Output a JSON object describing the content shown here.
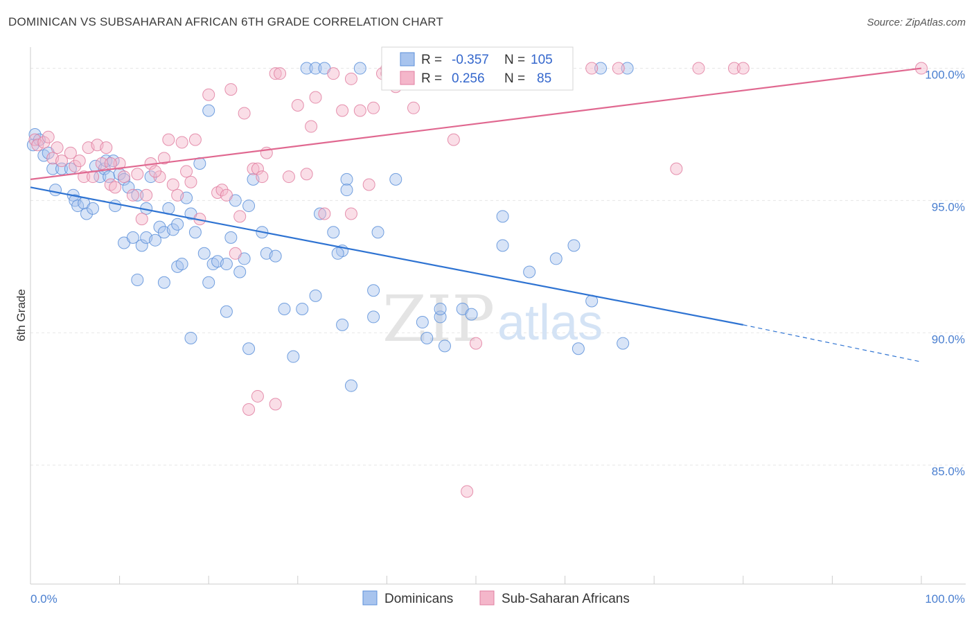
{
  "title": "DOMINICAN VS SUBSAHARAN AFRICAN 6TH GRADE CORRELATION CHART",
  "source": "Source: ZipAtlas.com",
  "watermark": {
    "zip": "ZIP",
    "atlas": "atlas"
  },
  "colors": {
    "blue": "#5b8fd9",
    "blue_fill": "#a8c4ee",
    "blue_line": "#2e73d2",
    "pink": "#e07ea0",
    "pink_fill": "#f4b6ca",
    "pink_line": "#e06890",
    "tick_text": "#4a7fd0",
    "grid": "#e6e6e6"
  },
  "stats": {
    "blue": {
      "r_label": "R =",
      "r": "-0.357",
      "n_label": "N =",
      "n": "105"
    },
    "pink": {
      "r_label": "R =",
      "r": "0.256",
      "n_label": "N =",
      "n": "85"
    }
  },
  "chart_data": {
    "type": "scatter",
    "title": "DOMINICAN VS SUBSAHARAN AFRICAN 6TH GRADE CORRELATION CHART",
    "xlabel": "",
    "ylabel": "6th Grade",
    "xlim": [
      0,
      100
    ],
    "ylim": [
      80.5,
      100.8
    ],
    "x_tick_labels": [
      "0.0%",
      "100.0%"
    ],
    "y_ticks": [
      85,
      90,
      95,
      100
    ],
    "y_tick_labels": [
      "85.0%",
      "90.0%",
      "95.0%",
      "100.0%"
    ],
    "grid": true,
    "legend_position": "bottom-center",
    "series": [
      {
        "name": "Dominicans",
        "color": "#5b8fd9",
        "trend": {
          "x0": 0,
          "y0": 95.5,
          "x1": 80,
          "y1": 90.3,
          "dashed_to_x": 100,
          "dashed_to_y": 88.9
        },
        "points": [
          [
            0.3,
            97.1
          ],
          [
            0.5,
            97.5
          ],
          [
            1.0,
            97.3
          ],
          [
            1.5,
            96.7
          ],
          [
            2.0,
            96.8
          ],
          [
            2.5,
            96.2
          ],
          [
            2.8,
            95.4
          ],
          [
            3.5,
            96.2
          ],
          [
            4.5,
            96.2
          ],
          [
            4.8,
            95.2
          ],
          [
            5.0,
            95.0
          ],
          [
            5.3,
            94.8
          ],
          [
            6.0,
            94.9
          ],
          [
            6.3,
            94.5
          ],
          [
            7.0,
            94.7
          ],
          [
            7.3,
            96.3
          ],
          [
            7.8,
            95.9
          ],
          [
            8.3,
            96.2
          ],
          [
            8.8,
            95.9
          ],
          [
            8.5,
            96.5
          ],
          [
            9.5,
            94.8
          ],
          [
            9.3,
            96.5
          ],
          [
            10.0,
            96.0
          ],
          [
            10.5,
            95.8
          ],
          [
            11.0,
            95.5
          ],
          [
            12.0,
            95.2
          ],
          [
            13.0,
            94.7
          ],
          [
            13.5,
            95.9
          ],
          [
            10.5,
            93.4
          ],
          [
            12.0,
            92.0
          ],
          [
            11.5,
            93.6
          ],
          [
            12.5,
            93.3
          ],
          [
            13.0,
            93.6
          ],
          [
            14.0,
            93.5
          ],
          [
            14.5,
            94.0
          ],
          [
            15.0,
            93.8
          ],
          [
            15.5,
            94.7
          ],
          [
            16.0,
            93.9
          ],
          [
            16.5,
            94.1
          ],
          [
            15.0,
            91.9
          ],
          [
            16.5,
            92.5
          ],
          [
            17.0,
            92.6
          ],
          [
            17.5,
            95.1
          ],
          [
            18.0,
            94.5
          ],
          [
            19.0,
            96.4
          ],
          [
            18.5,
            93.8
          ],
          [
            19.5,
            93.0
          ],
          [
            20.0,
            91.9
          ],
          [
            20.5,
            92.6
          ],
          [
            21.0,
            92.7
          ],
          [
            22.0,
            92.6
          ],
          [
            22.5,
            93.6
          ],
          [
            23.0,
            95.0
          ],
          [
            24.0,
            92.8
          ],
          [
            24.5,
            94.8
          ],
          [
            25.0,
            95.8
          ],
          [
            23.5,
            92.3
          ],
          [
            18.0,
            89.8
          ],
          [
            22.0,
            90.8
          ],
          [
            24.5,
            89.4
          ],
          [
            26.0,
            93.8
          ],
          [
            26.5,
            93.0
          ],
          [
            27.5,
            92.9
          ],
          [
            28.5,
            90.9
          ],
          [
            29.5,
            89.1
          ],
          [
            30.5,
            90.9
          ],
          [
            32.0,
            91.4
          ],
          [
            32.5,
            94.5
          ],
          [
            34.0,
            93.8
          ],
          [
            35.0,
            93.1
          ],
          [
            36.0,
            88.0
          ],
          [
            35.5,
            95.8
          ],
          [
            35.5,
            95.4
          ],
          [
            35.0,
            90.3
          ],
          [
            38.5,
            91.6
          ],
          [
            38.5,
            90.6
          ],
          [
            39.0,
            93.8
          ],
          [
            41.0,
            95.8
          ],
          [
            44.0,
            90.4
          ],
          [
            44.5,
            89.8
          ],
          [
            46.0,
            90.6
          ],
          [
            46.0,
            90.9
          ],
          [
            46.5,
            89.5
          ],
          [
            48.5,
            90.9
          ],
          [
            49.5,
            90.7
          ],
          [
            53.0,
            94.4
          ],
          [
            53.0,
            93.3
          ],
          [
            56.0,
            92.3
          ],
          [
            59.0,
            92.8
          ],
          [
            61.0,
            93.3
          ],
          [
            61.5,
            89.4
          ],
          [
            63.0,
            91.2
          ],
          [
            66.5,
            89.6
          ],
          [
            34.5,
            93.0
          ],
          [
            31.0,
            100.0
          ],
          [
            32.0,
            100.0
          ],
          [
            33.0,
            100.0
          ],
          [
            37.0,
            100.0
          ],
          [
            40.5,
            100.0
          ],
          [
            42.0,
            100.0
          ],
          [
            45.0,
            100.0
          ],
          [
            50.0,
            100.0
          ],
          [
            64.0,
            100.0
          ],
          [
            67.0,
            100.0
          ],
          [
            20.0,
            98.4
          ]
        ]
      },
      {
        "name": "Sub-Saharan Africans",
        "color": "#e07ea0",
        "trend": {
          "x0": 0,
          "y0": 95.8,
          "x1": 100,
          "y1": 100.0
        },
        "points": [
          [
            0.5,
            97.3
          ],
          [
            0.8,
            97.1
          ],
          [
            1.5,
            97.2
          ],
          [
            2.0,
            97.4
          ],
          [
            3.0,
            97.0
          ],
          [
            2.5,
            96.6
          ],
          [
            3.5,
            96.5
          ],
          [
            4.5,
            96.8
          ],
          [
            5.0,
            96.3
          ],
          [
            5.5,
            96.5
          ],
          [
            6.0,
            95.9
          ],
          [
            6.5,
            97.0
          ],
          [
            7.0,
            95.9
          ],
          [
            7.5,
            97.1
          ],
          [
            8.0,
            96.4
          ],
          [
            8.5,
            97.0
          ],
          [
            9.0,
            95.6
          ],
          [
            9.5,
            95.5
          ],
          [
            10.0,
            96.4
          ],
          [
            10.5,
            95.9
          ],
          [
            11.5,
            95.2
          ],
          [
            12.5,
            94.3
          ],
          [
            13.0,
            95.2
          ],
          [
            13.5,
            96.4
          ],
          [
            14.5,
            95.9
          ],
          [
            15.0,
            96.6
          ],
          [
            15.5,
            97.3
          ],
          [
            16.0,
            95.6
          ],
          [
            16.5,
            95.2
          ],
          [
            17.0,
            97.2
          ],
          [
            17.5,
            96.1
          ],
          [
            18.0,
            95.7
          ],
          [
            18.5,
            97.3
          ],
          [
            19.0,
            94.3
          ],
          [
            20.0,
            99.0
          ],
          [
            21.0,
            95.3
          ],
          [
            21.5,
            95.4
          ],
          [
            22.0,
            95.2
          ],
          [
            22.5,
            99.2
          ],
          [
            23.0,
            93.0
          ],
          [
            23.5,
            94.4
          ],
          [
            24.0,
            98.3
          ],
          [
            25.0,
            96.2
          ],
          [
            25.5,
            96.2
          ],
          [
            26.0,
            95.9
          ],
          [
            26.5,
            96.8
          ],
          [
            27.5,
            99.8
          ],
          [
            28.0,
            99.8
          ],
          [
            29.0,
            95.9
          ],
          [
            30.0,
            98.6
          ],
          [
            31.0,
            96.0
          ],
          [
            31.5,
            97.8
          ],
          [
            32.0,
            98.9
          ],
          [
            33.0,
            94.5
          ],
          [
            34.0,
            99.8
          ],
          [
            35.0,
            98.4
          ],
          [
            36.0,
            99.6
          ],
          [
            37.0,
            98.4
          ],
          [
            38.0,
            95.6
          ],
          [
            38.5,
            98.5
          ],
          [
            39.5,
            99.8
          ],
          [
            40.0,
            99.8
          ],
          [
            41.0,
            99.3
          ],
          [
            42.0,
            99.8
          ],
          [
            43.0,
            98.5
          ],
          [
            44.5,
            99.8
          ],
          [
            47.5,
            97.3
          ],
          [
            48.0,
            99.8
          ],
          [
            63.0,
            100.0
          ],
          [
            66.0,
            100.0
          ],
          [
            72.5,
            96.2
          ],
          [
            75.0,
            100.0
          ],
          [
            79.0,
            100.0
          ],
          [
            80.0,
            100.0
          ],
          [
            100.0,
            100.0
          ],
          [
            24.5,
            87.1
          ],
          [
            25.5,
            87.6
          ],
          [
            27.5,
            87.3
          ],
          [
            36.0,
            94.5
          ],
          [
            50.0,
            89.6
          ],
          [
            49.0,
            84.0
          ],
          [
            12.0,
            96.0
          ],
          [
            14.0,
            96.1
          ],
          [
            9.0,
            96.4
          ],
          [
            40.0,
            100.0
          ]
        ]
      }
    ]
  }
}
